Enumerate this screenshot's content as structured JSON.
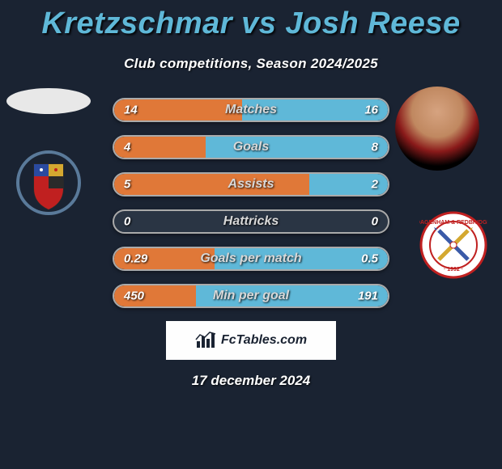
{
  "title": "Kretzschmar vs Josh Reese",
  "subtitle": "Club competitions, Season 2024/2025",
  "colors": {
    "left": "#e07838",
    "right": "#5fb8d8",
    "bar_bg": "#2a3544",
    "title": "#5fb8d8"
  },
  "stats": [
    {
      "label": "Matches",
      "left_val": "14",
      "right_val": "16",
      "left_pct": 46.7,
      "right_pct": 53.3
    },
    {
      "label": "Goals",
      "left_val": "4",
      "right_val": "8",
      "left_pct": 33.3,
      "right_pct": 66.7
    },
    {
      "label": "Assists",
      "left_val": "5",
      "right_val": "2",
      "left_pct": 71.4,
      "right_pct": 28.6
    },
    {
      "label": "Hattricks",
      "left_val": "0",
      "right_val": "0",
      "left_pct": 0,
      "right_pct": 0
    },
    {
      "label": "Goals per match",
      "left_val": "0.29",
      "right_val": "0.5",
      "left_pct": 36.7,
      "right_pct": 63.3
    },
    {
      "label": "Min per goal",
      "left_val": "450",
      "right_val": "191",
      "left_pct": 29.8,
      "right_pct": 70.2
    }
  ],
  "footer": {
    "brand": "FcTables.com",
    "date": "17 december 2024"
  }
}
